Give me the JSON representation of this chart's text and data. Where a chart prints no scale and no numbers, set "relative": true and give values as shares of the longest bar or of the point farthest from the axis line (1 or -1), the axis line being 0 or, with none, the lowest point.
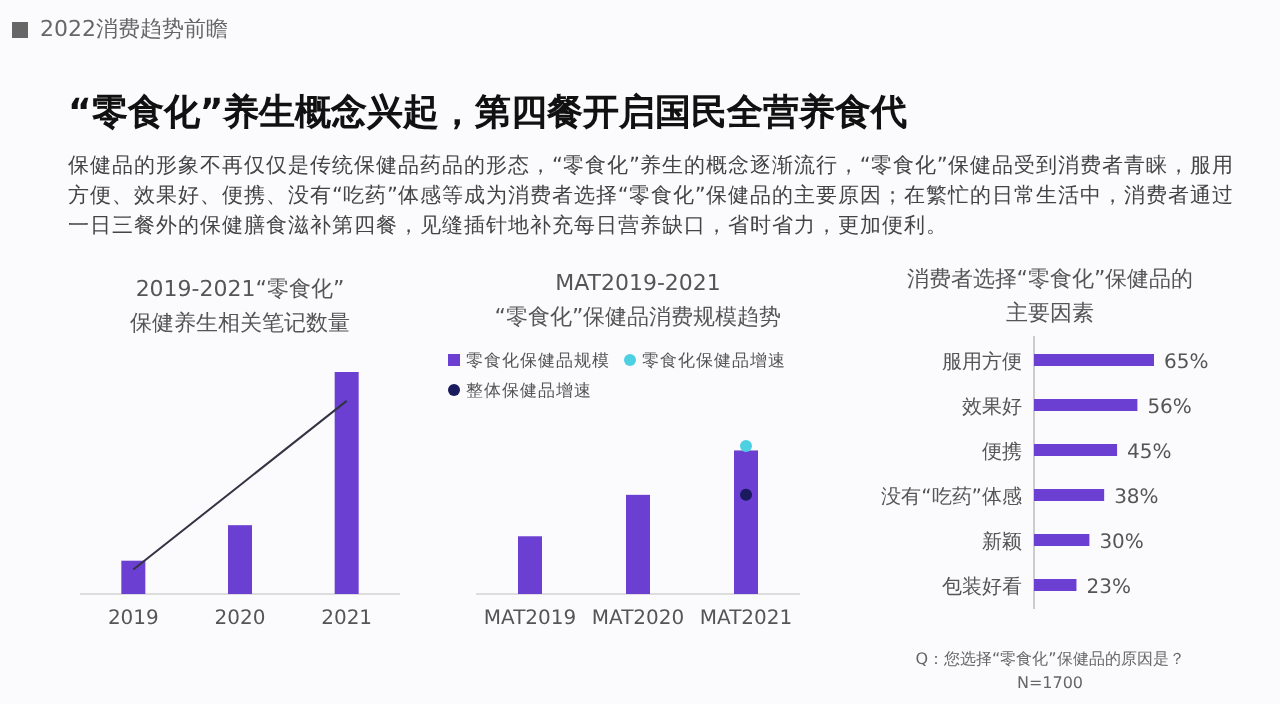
{
  "chart_data": [
    {
      "type": "other",
      "title": "2022消费趋势前瞻",
      "subtitle": "“零食化”养生概念兴起，第四餐开启国民全营养食代",
      "annotations": [
        "保健品的形象不再仅仅是传统保健品药品的形态，“零食化”养生的概念逐渐流行，“零食化”保健品受到消费者青睐，服用方便、效果好、便携、没有“吃药”体感等成为消费者选择“零食化”保健品的主要原因；在繁忙的日常生活中，消费者通过一日三餐外的保健膳食滋补第四餐，见缝插针地补充每日营养缺口，省时省力，更加便利。"
      ]
    },
    {
      "type": "bar",
      "title": "2019-2021“零食化”",
      "subtitle": "保健养生相关笔记数量",
      "relative": true,
      "categories": [
        "2019",
        "2020",
        "2021"
      ],
      "series": [
        {
          "color": "#6a3fd1",
          "values": [
            0.15,
            0.31,
            1
          ]
        },
        {
          "type": "line",
          "color": "#333344",
          "values": [
            0.11,
            0.49,
            0.87
          ]
        }
      ]
    },
    {
      "type": "bar",
      "title": "MAT2019-2021",
      "subtitle": "“零食化”保健品消费规模趋势",
      "relative": true,
      "legend": "top",
      "categories": [
        "MAT2019",
        "MAT2020",
        "MAT2021"
      ],
      "series": [
        {
          "name": "零食化保健品规模",
          "color": "#6a3fd1",
          "values": [
            0.39,
            0.67,
            0.97
          ]
        },
        {
          "name": "零食化保健品增速",
          "type": "scatter",
          "color": "#4dd0e1",
          "x": [
            "MAT2021"
          ],
          "values": [
            1
          ]
        },
        {
          "name": "整体保健品增速",
          "type": "scatter",
          "color": "#1a1a5e",
          "x": [
            "MAT2021"
          ],
          "values": [
            0.67
          ]
        }
      ]
    },
    {
      "type": "bar",
      "orientation": "horizontal",
      "title": "消费者选择“零食化”保健品的",
      "subtitle": "主要因素",
      "categories": [
        "服用方便",
        "效果好",
        "便携",
        "没有“吃药”体感",
        "新颖",
        "包装好看"
      ],
      "values": [
        65,
        56,
        45,
        38,
        30,
        23
      ],
      "color": "#6a3fd1",
      "value_labels": [
        "65%",
        "56%",
        "45%",
        "38%",
        "30%",
        "23%"
      ],
      "annotations": [
        "Q：您选择“零食化”保健品的原因是？",
        "N=1700"
      ]
    }
  ]
}
